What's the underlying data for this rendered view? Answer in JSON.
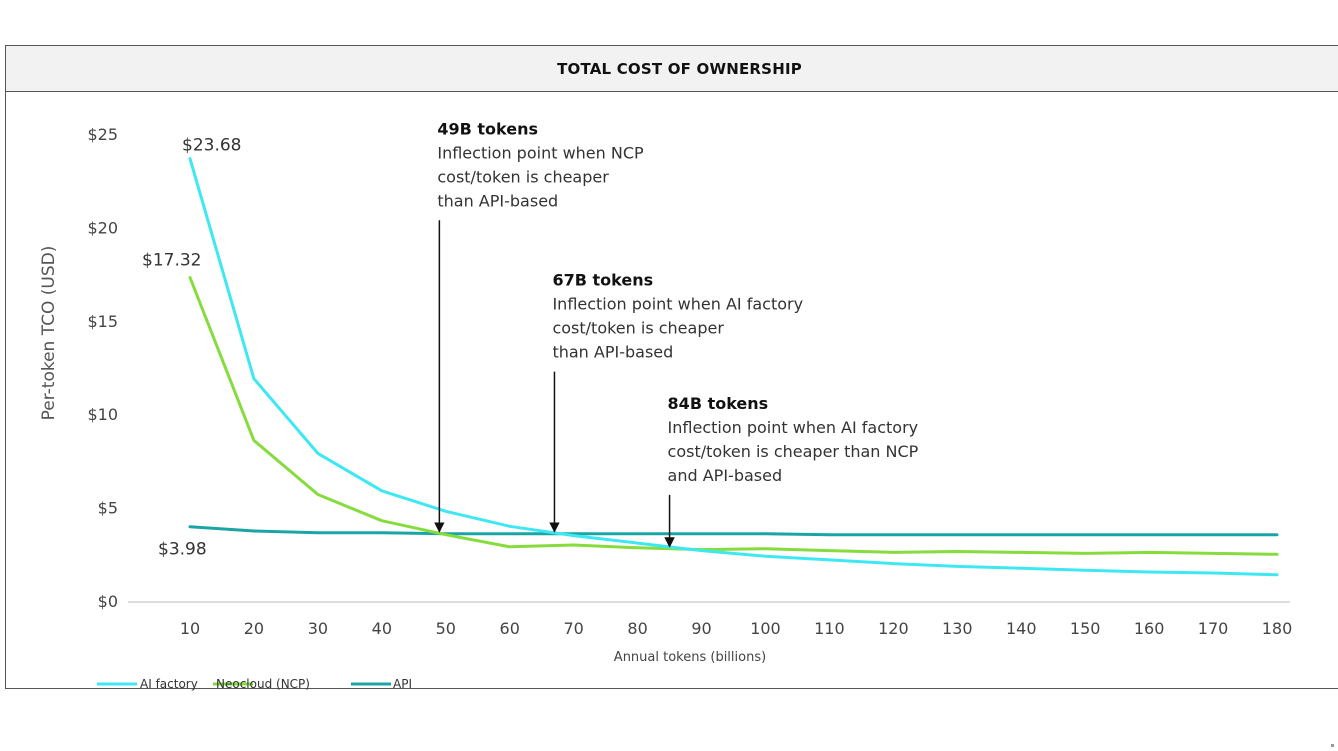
{
  "colors": {
    "ai_factory": "#3ee8f3",
    "neocloud": "#86dc3d",
    "api": "#1aa5a5",
    "text": "#333333"
  },
  "chart_data": {
    "type": "line",
    "title": "TOTAL COST OF OWNERSHIP",
    "xlabel": "Annual tokens (billions)",
    "ylabel": "Per-token TCO (USD)",
    "x": [
      10,
      20,
      30,
      40,
      50,
      60,
      70,
      80,
      90,
      100,
      110,
      120,
      130,
      140,
      150,
      160,
      170,
      180
    ],
    "xticks": [
      "10",
      "20",
      "30",
      "40",
      "50",
      "60",
      "70",
      "80",
      "90",
      "100",
      "110",
      "120",
      "130",
      "140",
      "150",
      "160",
      "170",
      "180"
    ],
    "ylim": [
      0,
      25
    ],
    "yticks": [
      0,
      5,
      10,
      15,
      20,
      25
    ],
    "ytick_labels": [
      "$0",
      "$5",
      "$10",
      "$15",
      "$20",
      "$25"
    ],
    "series": [
      {
        "name": "AI factory",
        "color_key": "ai_factory",
        "values": [
          23.68,
          11.9,
          7.9,
          5.9,
          4.8,
          4.0,
          3.5,
          3.1,
          2.7,
          2.4,
          2.2,
          2.0,
          1.85,
          1.75,
          1.65,
          1.55,
          1.5,
          1.4
        ]
      },
      {
        "name": "Neocloud (NCP)",
        "color_key": "neocloud",
        "values": [
          17.32,
          8.6,
          5.7,
          4.3,
          3.55,
          2.9,
          3.0,
          2.85,
          2.75,
          2.8,
          2.7,
          2.6,
          2.65,
          2.6,
          2.55,
          2.6,
          2.55,
          2.5
        ]
      },
      {
        "name": "API",
        "color_key": "api",
        "values": [
          3.98,
          3.75,
          3.65,
          3.65,
          3.6,
          3.6,
          3.6,
          3.6,
          3.6,
          3.6,
          3.55,
          3.55,
          3.55,
          3.55,
          3.55,
          3.55,
          3.55,
          3.55
        ]
      }
    ],
    "data_labels": [
      {
        "id": "ai-start",
        "text": "$23.68",
        "x": 10,
        "y": 23.68
      },
      {
        "id": "ncp-start",
        "text": "$17.32",
        "x": 10,
        "y": 17.32
      },
      {
        "id": "api-start",
        "text": "$3.98",
        "x": 10,
        "y": 3.98
      }
    ],
    "annotations": [
      {
        "id": "ann-49b",
        "x": 49,
        "y": 3.6,
        "text_top": 25.2,
        "bold": "49B tokens",
        "lines": [
          "Inflection point when NCP",
          "cost/token is cheaper",
          "than API-based"
        ]
      },
      {
        "id": "ann-67b",
        "x": 67,
        "y": 3.6,
        "text_top": 17.1,
        "bold": "67B tokens",
        "lines": [
          "Inflection point when AI factory",
          "cost/token is cheaper",
          "than API-based"
        ]
      },
      {
        "id": "ann-84b",
        "x": 85,
        "y": 2.8,
        "text_top": 10.5,
        "bold": "84B tokens",
        "lines": [
          "Inflection point when AI factory",
          "cost/token is cheaper than NCP",
          "and API-based"
        ]
      }
    ],
    "legend": {
      "position": "bottom-left",
      "items": [
        {
          "label": "AI factory",
          "color_key": "ai_factory"
        },
        {
          "label": "Neocloud (NCP)",
          "color_key": "neocloud"
        },
        {
          "label": "API",
          "color_key": "api"
        }
      ]
    }
  }
}
